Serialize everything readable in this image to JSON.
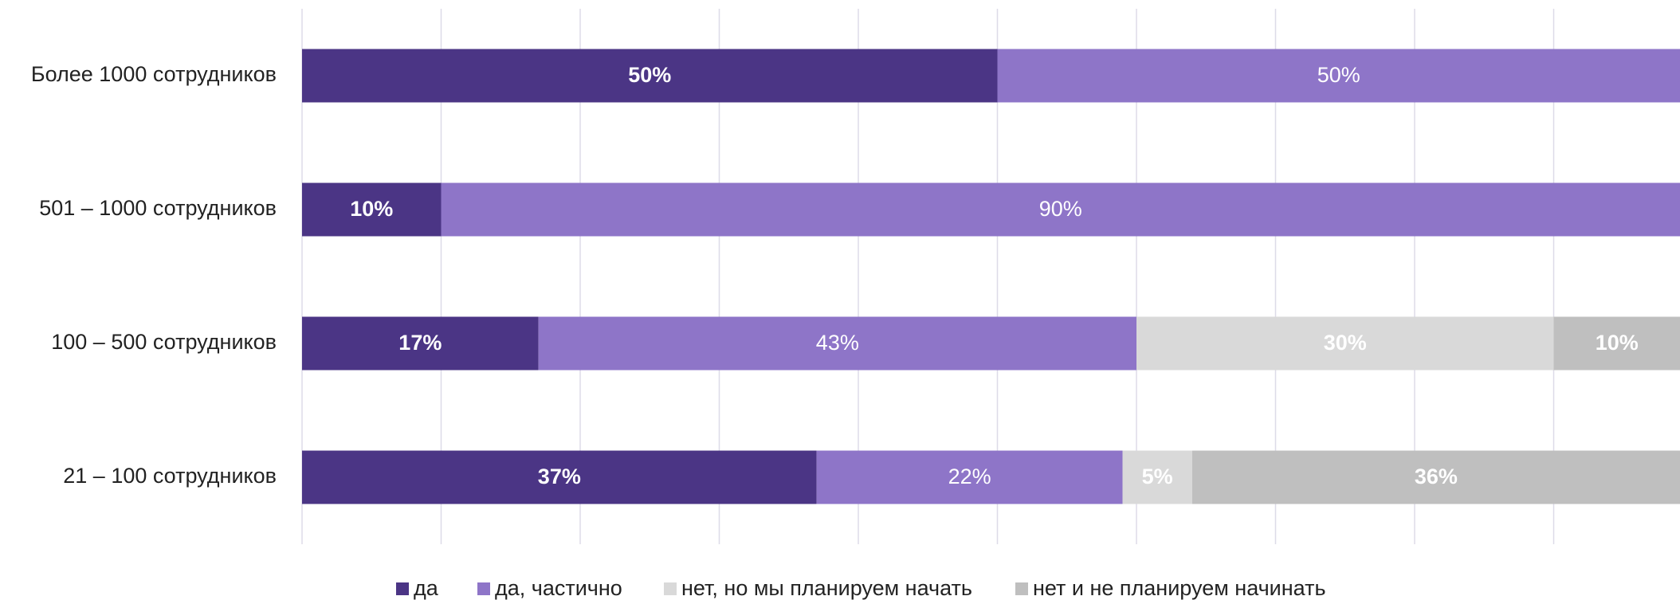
{
  "chart_data": {
    "type": "stacked-barh",
    "categories": [
      "Более 1000 сотрудников",
      "501 – 1000 сотрудников",
      "100 – 500 сотрудников",
      "21 – 100 сотрудников"
    ],
    "series": [
      {
        "name": "да",
        "color": "#4b3585",
        "values": [
          50,
          10,
          17,
          37
        ],
        "value_labels": [
          "50%",
          "10%",
          "17%",
          "37%"
        ]
      },
      {
        "name": "да, частично",
        "color": "#8e75c8",
        "values": [
          50,
          90,
          43,
          22
        ],
        "value_labels": [
          "50%",
          "90%",
          "43%",
          "22%"
        ]
      },
      {
        "name": "нет, но мы планируем начать",
        "color": "#d9d9d9",
        "values": [
          null,
          null,
          30,
          5
        ],
        "value_labels": [
          null,
          null,
          "30%",
          "5%"
        ]
      },
      {
        "name": "нет и не планируем начинать",
        "color": "#bfbfbf",
        "values": [
          null,
          null,
          10,
          36
        ],
        "value_labels": [
          null,
          null,
          "10%",
          "36%"
        ]
      }
    ],
    "xlim": [
      0,
      100
    ],
    "xticks": [
      0,
      10,
      20,
      30,
      40,
      50,
      60,
      70,
      80,
      90,
      100
    ],
    "grid": true,
    "legend": "bottom"
  }
}
